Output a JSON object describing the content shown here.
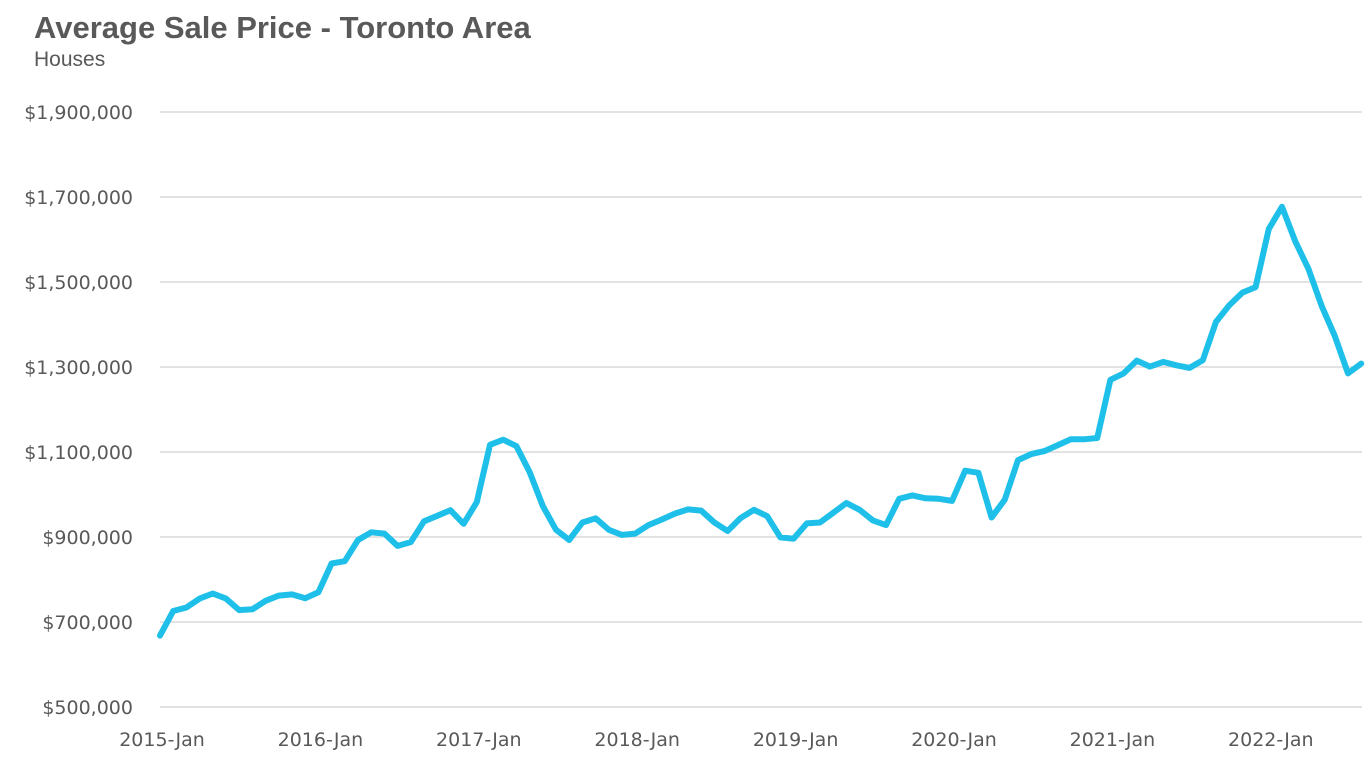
{
  "chart_data": {
    "type": "line",
    "title": "Average Sale Price - Toronto Area",
    "subtitle": "Houses",
    "xlabel": "",
    "ylabel": "",
    "ylim": [
      500000,
      1900000
    ],
    "y_ticks": [
      500000,
      700000,
      900000,
      1100000,
      1300000,
      1500000,
      1700000,
      1900000
    ],
    "y_tick_labels": [
      "$500,000",
      "$700,000",
      "$900,000",
      "$1,100,000",
      "$1,300,000",
      "$1,500,000",
      "$1,700,000",
      "$1,900,000"
    ],
    "x_tick_labels": [
      "2015-Jan",
      "2016-Jan",
      "2017-Jan",
      "2018-Jan",
      "2019-Jan",
      "2020-Jan",
      "2021-Jan",
      "2022-Jan"
    ],
    "grid": true,
    "legend": "none",
    "line_color": "#1ebfe8",
    "gridline_color": "#d9d9d9",
    "series": [
      {
        "start": "2015-Jan",
        "frequency": "monthly",
        "values": [
          668000,
          726000,
          734000,
          755000,
          767000,
          755000,
          728000,
          730000,
          750000,
          762000,
          765000,
          756000,
          770000,
          838000,
          843000,
          893000,
          911000,
          908000,
          879000,
          888000,
          937000,
          950000,
          963000,
          931000,
          982000,
          1117000,
          1129000,
          1114000,
          1053000,
          973000,
          917000,
          893000,
          934000,
          944000,
          917000,
          905000,
          908000,
          928000,
          941000,
          955000,
          965000,
          962000,
          934000,
          914000,
          945000,
          964000,
          949000,
          899000,
          896000,
          932000,
          934000,
          957000,
          980000,
          964000,
          939000,
          928000,
          990000,
          998000,
          991000,
          990000,
          985000,
          1056000,
          1051000,
          946000,
          988000,
          1081000,
          1095000,
          1102000,
          1116000,
          1130000,
          1130000,
          1133000,
          1270000,
          1285000,
          1315000,
          1301000,
          1312000,
          1304000,
          1298000,
          1316000,
          1406000,
          1445000,
          1475000,
          1488000,
          1625000,
          1677000,
          1596000,
          1531000,
          1444000,
          1373000,
          1285000,
          1308000
        ]
      }
    ]
  }
}
